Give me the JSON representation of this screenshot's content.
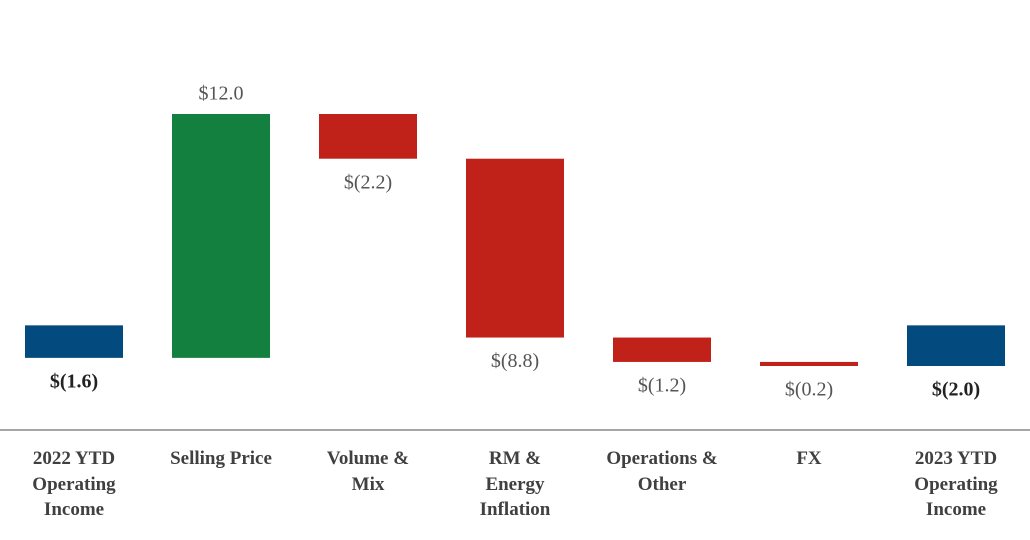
{
  "chart_data": {
    "type": "waterfall",
    "categories": [
      "2022 YTD\nOperating\nIncome",
      "Selling Price",
      "Volume &\nMix",
      "RM &\nEnergy\nInflation",
      "Operations &\nOther",
      "FX",
      "2023 YTD\nOperating\nIncome"
    ],
    "measure": [
      "total",
      "relative",
      "relative",
      "relative",
      "relative",
      "relative",
      "total"
    ],
    "values": [
      -1.6,
      12.0,
      -2.2,
      -8.8,
      -1.2,
      -0.2,
      -2.0
    ],
    "value_labels": [
      "$(1.6)",
      "$12.0",
      "$(2.2)",
      "$(8.8)",
      "$(1.2)",
      "$(0.2)",
      "$(2.0)"
    ],
    "colors": {
      "total": "#034a7e",
      "increase": "#138040",
      "decrease": "#c0221a"
    }
  }
}
